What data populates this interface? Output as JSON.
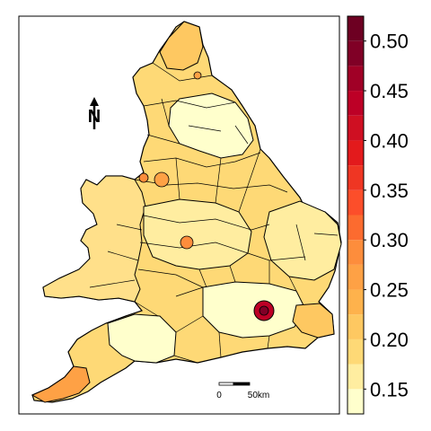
{
  "map": {
    "north_label": "N",
    "scale_bar": {
      "start_label": "0",
      "end_label": "50km"
    }
  },
  "legend": {
    "bins": [
      {
        "label": null,
        "color": "#ffffcc"
      },
      {
        "label": "0.15",
        "color": "#ffeda0"
      },
      {
        "label": null,
        "color": "#fed976"
      },
      {
        "label": "0.20",
        "color": "#fec861"
      },
      {
        "label": null,
        "color": "#feb24c"
      },
      {
        "label": "0.25",
        "color": "#fea145"
      },
      {
        "label": null,
        "color": "#fd8d3c"
      },
      {
        "label": "0.30",
        "color": "#fc6b2f"
      },
      {
        "label": null,
        "color": "#fc4e2a"
      },
      {
        "label": "0.35",
        "color": "#ef3623"
      },
      {
        "label": null,
        "color": "#e31a1c"
      },
      {
        "label": "0.40",
        "color": "#cf0f22"
      },
      {
        "label": null,
        "color": "#bd0026"
      },
      {
        "label": "0.45",
        "color": "#a00026"
      },
      {
        "label": null,
        "color": "#800026"
      },
      {
        "label": "0.50",
        "color": "#6d0022"
      }
    ],
    "range": [
      0.105,
      0.52
    ]
  },
  "colors": {
    "outline": "#000000",
    "land_light": "#ffffcc",
    "land_mid": "#fed976",
    "land_dark": "#feb24c",
    "london": "#bd0026"
  }
}
